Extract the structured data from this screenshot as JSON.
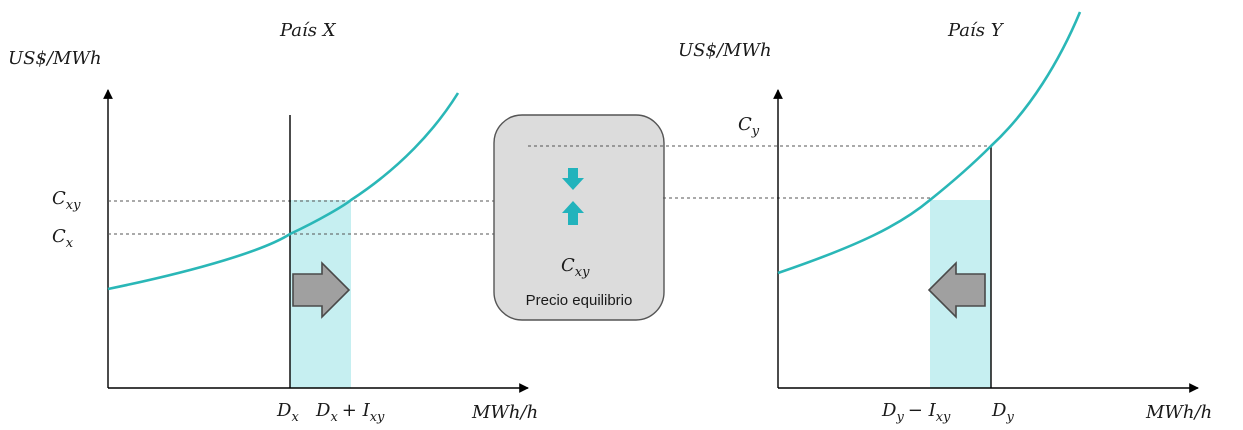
{
  "colors": {
    "curve": "#2ab7b7",
    "shade": "#c6eff1",
    "box_fill": "#dcdcdc",
    "box_stroke": "#555555",
    "arrow_fill": "#a0a0a0",
    "arrow_stroke": "#4a4a4a",
    "teal_arrow": "#22b3bc"
  },
  "left_panel": {
    "title": "País X",
    "y_axis_label": "US$/MWh",
    "x_axis_label": "MWh/h",
    "price_high": {
      "base": "C",
      "sub": "xy"
    },
    "price_low": {
      "base": "C",
      "sub": "x"
    },
    "demand": {
      "base": "D",
      "sub": "x"
    },
    "demand_plus_import": {
      "base": "D",
      "sub": "x",
      "op": "+ I",
      "op_sub": "xy"
    }
  },
  "center_box": {
    "price": {
      "base": "C",
      "sub": "xy"
    },
    "caption": "Precio equilibrio"
  },
  "right_panel": {
    "title": "País Y",
    "y_axis_label": "US$/MWh",
    "x_axis_label": "MWh/h",
    "price": {
      "base": "C",
      "sub": "y"
    },
    "demand_minus_import": {
      "base": "D",
      "sub": "y",
      "op": "− I",
      "op_sub": "xy"
    },
    "demand": {
      "base": "D",
      "sub": "y"
    }
  }
}
